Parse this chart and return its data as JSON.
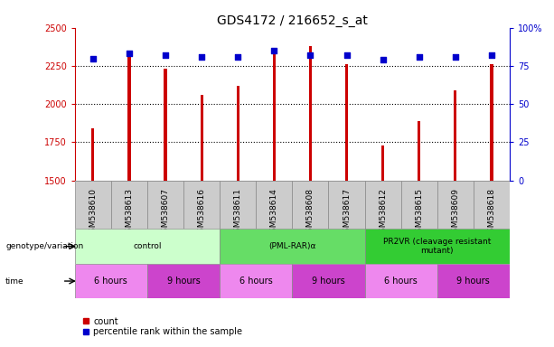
{
  "title": "GDS4172 / 216652_s_at",
  "samples": [
    "GSM538610",
    "GSM538613",
    "GSM538607",
    "GSM538616",
    "GSM538611",
    "GSM538614",
    "GSM538608",
    "GSM538617",
    "GSM538612",
    "GSM538615",
    "GSM538609",
    "GSM538618"
  ],
  "counts": [
    1840,
    2310,
    2230,
    2060,
    2120,
    2350,
    2380,
    2260,
    1730,
    1890,
    2090,
    2260
  ],
  "percentiles": [
    80,
    83,
    82,
    81,
    81,
    85,
    82,
    82,
    79,
    81,
    81,
    82
  ],
  "ylim_left": [
    1500,
    2500
  ],
  "ylim_right": [
    0,
    100
  ],
  "yticks_left": [
    1500,
    1750,
    2000,
    2250,
    2500
  ],
  "yticks_right": [
    0,
    25,
    50,
    75,
    100
  ],
  "ytick_labels_right": [
    "0",
    "25",
    "50",
    "75",
    "100%"
  ],
  "bar_color": "#cc0000",
  "dot_color": "#0000cc",
  "left_axis_color": "#cc0000",
  "right_axis_color": "#0000cc",
  "genotype_groups": [
    {
      "label": "control",
      "start": 0,
      "end": 4,
      "color": "#ccffcc"
    },
    {
      "label": "(PML-RAR)α",
      "start": 4,
      "end": 8,
      "color": "#66dd66"
    },
    {
      "label": "PR2VR (cleavage resistant\nmutant)",
      "start": 8,
      "end": 12,
      "color": "#33cc33"
    }
  ],
  "time_groups": [
    {
      "label": "6 hours",
      "start": 0,
      "end": 2,
      "color": "#ee88ee"
    },
    {
      "label": "9 hours",
      "start": 2,
      "end": 4,
      "color": "#cc44cc"
    },
    {
      "label": "6 hours",
      "start": 4,
      "end": 6,
      "color": "#ee88ee"
    },
    {
      "label": "9 hours",
      "start": 6,
      "end": 8,
      "color": "#cc44cc"
    },
    {
      "label": "6 hours",
      "start": 8,
      "end": 10,
      "color": "#ee88ee"
    },
    {
      "label": "9 hours",
      "start": 10,
      "end": 12,
      "color": "#cc44cc"
    }
  ],
  "genotype_label": "genotype/variation",
  "time_label": "time",
  "legend_count": "count",
  "legend_percentile": "percentile rank within the sample",
  "grid_color": "#000000",
  "background_color": "#ffffff",
  "bar_width": 0.08,
  "xlim": [
    -0.5,
    11.5
  ]
}
